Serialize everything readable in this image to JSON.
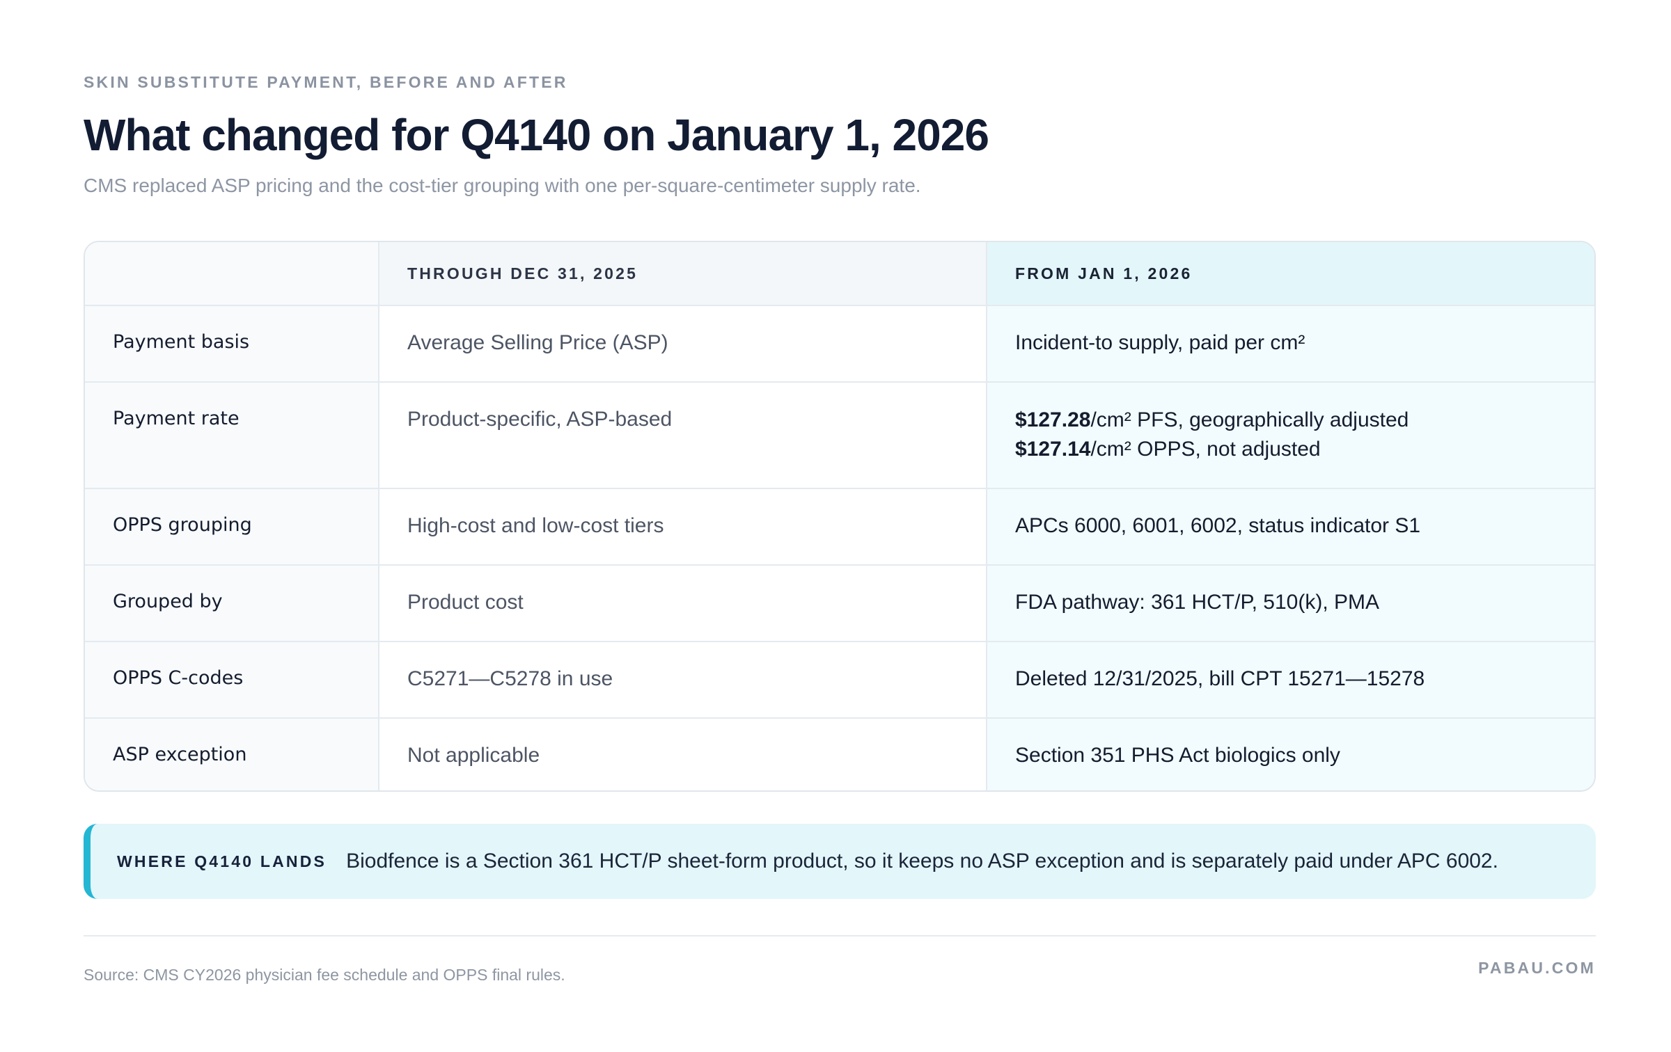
{
  "header": {
    "eyebrow": "SKIN SUBSTITUTE PAYMENT, BEFORE AND AFTER",
    "title": "What changed for Q4140 on January 1, 2026",
    "subtitle": "CMS replaced ASP pricing and the cost-tier grouping with one per-square-centimeter supply rate."
  },
  "table": {
    "columns": [
      "",
      "THROUGH DEC 31, 2025",
      "FROM JAN 1, 2026"
    ],
    "rows": [
      {
        "label": "Payment basis",
        "before": "Average Selling Price (ASP)",
        "after": "Incident-to supply, paid per cm²"
      },
      {
        "label": "Payment rate",
        "before": "Product-specific, ASP-based",
        "after_lines": [
          {
            "amount": "$127.28",
            "rest": "/cm² PFS, geographically adjusted"
          },
          {
            "amount": "$127.14",
            "rest": "/cm² OPPS, not adjusted"
          }
        ]
      },
      {
        "label": "OPPS grouping",
        "before": "High-cost and low-cost tiers",
        "after": "APCs 6000, 6001, 6002, status indicator S1"
      },
      {
        "label": "Grouped by",
        "before": "Product cost",
        "after": "FDA pathway: 361 HCT/P, 510(k), PMA"
      },
      {
        "label": "OPPS C-codes",
        "before": "C5271—C5278 in use",
        "after": "Deleted 12/31/2025, bill CPT 15271—15278"
      },
      {
        "label": "ASP exception",
        "before": "Not applicable",
        "after": "Section 351 PHS Act biologics only"
      }
    ]
  },
  "callout": {
    "tag": "WHERE Q4140 LANDS",
    "text": "Biodfence is a Section 361 HCT/P sheet-form product, so it keeps no ASP exception and is separately paid under APC 6002."
  },
  "footer": {
    "source": "Source: CMS CY2026 physician fee schedule and OPPS final rules.",
    "brand": "PABAU.COM"
  },
  "colors": {
    "accent": "#23b7d3",
    "new_column_bg": "#f2fbfd",
    "callout_bg": "#e3f6fa"
  }
}
